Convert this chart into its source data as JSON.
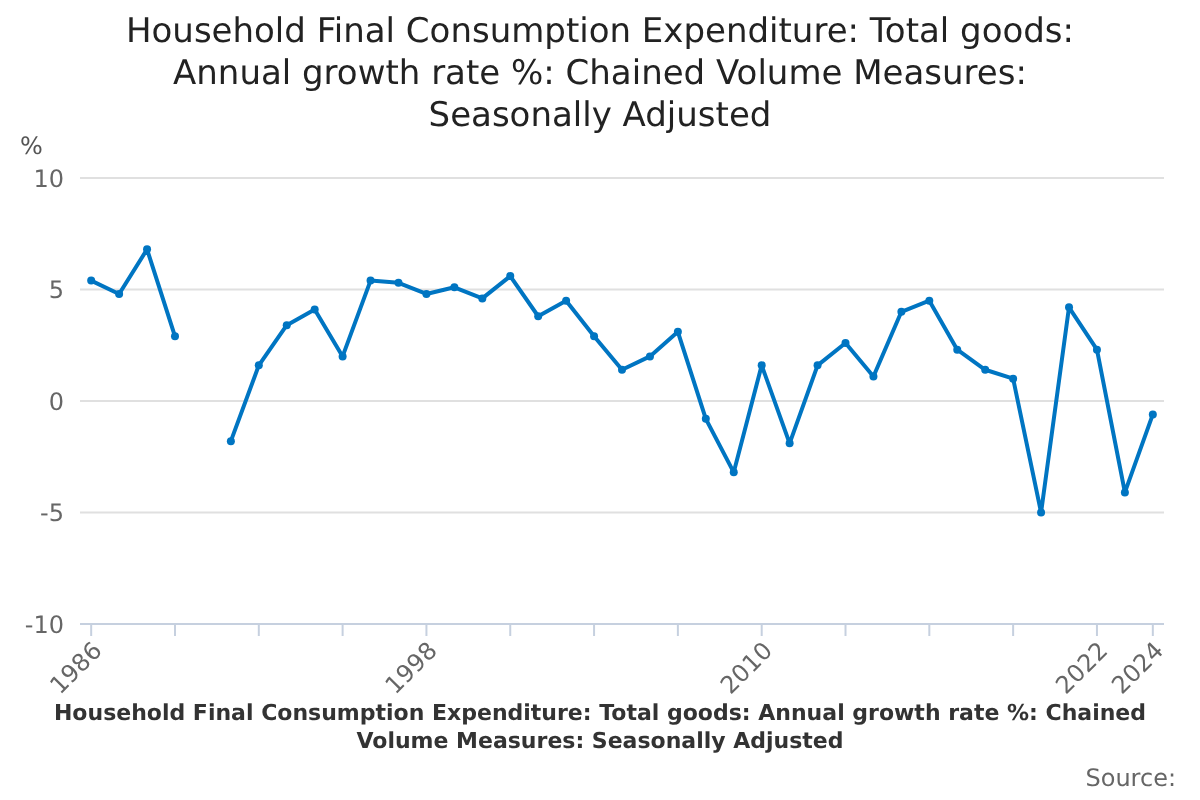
{
  "chart_data": {
    "type": "line",
    "title": "Household Final Consumption Expenditure: Total goods: Annual growth rate %: Chained Volume Measures: Seasonally Adjusted",
    "ylabel": "%",
    "x": [
      1986,
      1987,
      1988,
      1989,
      1990,
      1991,
      1992,
      1993,
      1994,
      1995,
      1996,
      1997,
      1998,
      1999,
      2000,
      2001,
      2002,
      2003,
      2004,
      2005,
      2006,
      2007,
      2008,
      2009,
      2010,
      2011,
      2012,
      2013,
      2014,
      2015,
      2016,
      2017,
      2018,
      2019,
      2020,
      2021,
      2022,
      2023,
      2024
    ],
    "series": [
      {
        "color": "#0075c2",
        "values": [
          5.4,
          4.8,
          6.8,
          2.9,
          null,
          -1.8,
          1.6,
          3.4,
          4.1,
          2.0,
          5.4,
          5.3,
          4.8,
          5.1,
          4.6,
          5.6,
          3.8,
          4.5,
          2.9,
          1.4,
          2.0,
          3.1,
          -0.8,
          -3.2,
          1.6,
          -1.9,
          1.6,
          2.6,
          1.1,
          4.0,
          4.5,
          2.3,
          1.4,
          1.0,
          -5.0,
          4.2,
          2.3,
          -4.1,
          -0.6
        ]
      }
    ],
    "xlim": [
      1985.6,
      2024.4
    ],
    "xticks": [
      1986,
      {
        "value": 1989,
        "label": null
      },
      {
        "value": 1992,
        "label": null
      },
      {
        "value": 1995,
        "label": null
      },
      1998,
      {
        "value": 2001,
        "label": null
      },
      {
        "value": 2004,
        "label": null
      },
      {
        "value": 2007,
        "label": null
      },
      2010,
      {
        "value": 2013,
        "label": null
      },
      {
        "value": 2016,
        "label": null
      },
      {
        "value": 2019,
        "label": null
      },
      2022,
      2024
    ],
    "ylim": [
      -10,
      10
    ],
    "yticks": [
      -10,
      -5,
      0,
      5,
      10
    ],
    "grid": "y",
    "marker": "circle",
    "line_style": "solid",
    "legend": false,
    "annotations": [
      "Household Final Consumption Expenditure: Total goods: Annual growth rate %: Chained Volume Measures: Seasonally Adjusted",
      "Source:"
    ]
  }
}
